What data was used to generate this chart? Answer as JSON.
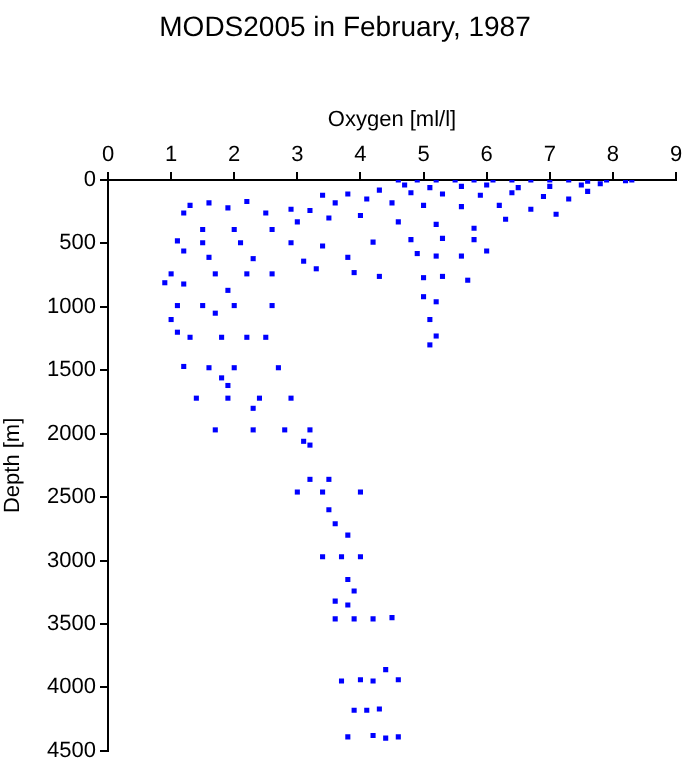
{
  "chart_data": {
    "type": "scatter",
    "title": "MODS2005 in February, 1987",
    "xlabel": "Oxygen [ml/l]",
    "ylabel": "Depth [m]",
    "marker": "square",
    "xlim": [
      0,
      9
    ],
    "xticks": [
      0,
      1,
      2,
      3,
      4,
      5,
      6,
      7,
      8,
      9
    ],
    "ylim": [
      4500,
      0
    ],
    "yticks": [
      0,
      500,
      1000,
      1500,
      2000,
      2500,
      3000,
      3500,
      4000,
      4500
    ],
    "series": [
      {
        "color": "#0000ff",
        "x": [
          4.6,
          4.9,
          5.2,
          5.5,
          5.8,
          6.1,
          6.4,
          6.7,
          7.0,
          7.3,
          7.6,
          7.9,
          8.2,
          8.3,
          4.7,
          5.1,
          5.6,
          6.0,
          6.5,
          7.0,
          7.5,
          7.8,
          4.3,
          4.8,
          5.3,
          5.9,
          6.4,
          6.9,
          7.3,
          7.6,
          3.4,
          3.8,
          4.1,
          3.6,
          4.5,
          5.0,
          5.6,
          6.2,
          6.7,
          7.1,
          1.3,
          1.6,
          1.9,
          2.2,
          2.5,
          2.9,
          3.2,
          1.2,
          1.5,
          2.0,
          2.6,
          3.0,
          3.5,
          4.0,
          4.6,
          5.2,
          5.8,
          6.3,
          1.1,
          1.5,
          2.1,
          2.9,
          3.4,
          4.2,
          4.8,
          5.3,
          5.8,
          6.0,
          1.2,
          1.6,
          2.3,
          3.1,
          3.8,
          4.9,
          5.2,
          5.6,
          1.0,
          1.7,
          2.2,
          2.6,
          3.3,
          3.9,
          4.3,
          0.9,
          1.2,
          1.9,
          5.0,
          5.3,
          5.7,
          1.1,
          1.5,
          2.0,
          2.6,
          1.7,
          5.0,
          5.2,
          1.0,
          1.1,
          1.3,
          1.8,
          2.2,
          2.5,
          5.1,
          5.2,
          5.1,
          1.2,
          1.6,
          2.0,
          2.7,
          1.8,
          1.9,
          1.4,
          1.9,
          2.4,
          2.9,
          2.3,
          1.7,
          2.3,
          2.8,
          3.2,
          3.1,
          3.2,
          3.2,
          3.5,
          3.0,
          3.4,
          4.0,
          3.5,
          3.6,
          3.8,
          3.4,
          3.7,
          4.0,
          3.8,
          3.9,
          3.6,
          3.8,
          3.6,
          3.9,
          4.2,
          4.5,
          3.7,
          4.0,
          4.2,
          4.6,
          4.4,
          3.9,
          4.1,
          4.3,
          3.8,
          4.2,
          4.4,
          4.6
        ],
        "values": [
          0,
          0,
          0,
          0,
          0,
          0,
          0,
          0,
          0,
          0,
          10,
          0,
          5,
          0,
          40,
          60,
          50,
          40,
          60,
          50,
          40,
          30,
          80,
          100,
          110,
          120,
          100,
          130,
          150,
          90,
          120,
          110,
          150,
          180,
          180,
          200,
          210,
          200,
          230,
          270,
          200,
          180,
          220,
          170,
          260,
          230,
          240,
          260,
          390,
          390,
          390,
          330,
          300,
          280,
          330,
          350,
          380,
          310,
          480,
          495,
          495,
          495,
          520,
          490,
          470,
          460,
          470,
          560,
          560,
          610,
          620,
          640,
          610,
          580,
          600,
          600,
          740,
          740,
          740,
          740,
          700,
          730,
          760,
          810,
          820,
          870,
          770,
          760,
          790,
          990,
          990,
          990,
          990,
          1050,
          920,
          960,
          1100,
          1200,
          1240,
          1240,
          1240,
          1240,
          1100,
          1230,
          1300,
          1470,
          1480,
          1480,
          1480,
          1560,
          1620,
          1720,
          1720,
          1720,
          1720,
          1800,
          1970,
          1970,
          1970,
          1970,
          2060,
          2090,
          2360,
          2360,
          2460,
          2460,
          2460,
          2600,
          2710,
          2800,
          2970,
          2970,
          2970,
          3150,
          3240,
          3320,
          3350,
          3460,
          3460,
          3460,
          3450,
          3950,
          3940,
          3950,
          3940,
          3860,
          4180,
          4180,
          4170,
          4390,
          4380,
          4400,
          4390
        ]
      }
    ]
  }
}
